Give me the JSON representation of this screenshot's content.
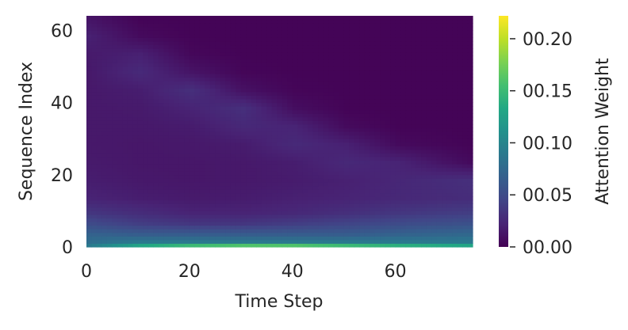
{
  "chart_data": {
    "type": "heatmap",
    "title": "",
    "xlabel": "Time Step",
    "ylabel": "Sequence Index",
    "xlim": [
      0,
      75
    ],
    "ylim": [
      0,
      64
    ],
    "xticks": [
      0,
      20,
      40,
      60
    ],
    "yticks": [
      0,
      20,
      40,
      60
    ],
    "colormap": "viridis",
    "grid": false,
    "colorbar": {
      "label": "Attention Weight",
      "range": [
        0,
        0.222
      ],
      "ticks": [
        0,
        0.05,
        0.1,
        0.15,
        0.2
      ],
      "tick_labels": [
        "00.00",
        "00.05",
        "00.10",
        "00.15",
        "00.20"
      ]
    },
    "grid_time_steps": [
      0,
      10,
      20,
      30,
      40,
      50,
      60,
      74
    ],
    "grid_sequence_index": [
      0,
      1,
      3,
      6,
      9,
      13,
      18,
      23,
      28,
      33,
      38,
      43,
      48,
      53,
      58,
      63
    ],
    "values": [
      [
        0.09,
        0.13,
        0.15,
        0.16,
        0.16,
        0.15,
        0.14,
        0.13
      ],
      [
        0.08,
        0.09,
        0.09,
        0.09,
        0.09,
        0.09,
        0.09,
        0.09
      ],
      [
        0.07,
        0.065,
        0.065,
        0.065,
        0.065,
        0.065,
        0.07,
        0.075
      ],
      [
        0.05,
        0.04,
        0.035,
        0.035,
        0.04,
        0.045,
        0.05,
        0.055
      ],
      [
        0.035,
        0.028,
        0.022,
        0.022,
        0.025,
        0.03,
        0.035,
        0.04
      ],
      [
        0.022,
        0.018,
        0.016,
        0.017,
        0.02,
        0.022,
        0.025,
        0.028
      ],
      [
        0.018,
        0.015,
        0.014,
        0.015,
        0.017,
        0.02,
        0.024,
        0.03
      ],
      [
        0.016,
        0.014,
        0.014,
        0.015,
        0.018,
        0.025,
        0.022,
        0.006
      ],
      [
        0.015,
        0.014,
        0.015,
        0.017,
        0.026,
        0.02,
        0.006,
        0.002
      ],
      [
        0.015,
        0.015,
        0.017,
        0.025,
        0.022,
        0.006,
        0.002,
        0.002
      ],
      [
        0.015,
        0.016,
        0.022,
        0.03,
        0.008,
        0.002,
        0.002,
        0.002
      ],
      [
        0.015,
        0.018,
        0.03,
        0.01,
        0.003,
        0.002,
        0.002,
        0.002
      ],
      [
        0.015,
        0.026,
        0.012,
        0.003,
        0.002,
        0.002,
        0.002,
        0.002
      ],
      [
        0.016,
        0.02,
        0.004,
        0.002,
        0.002,
        0.002,
        0.002,
        0.002
      ],
      [
        0.02,
        0.006,
        0.002,
        0.002,
        0.002,
        0.002,
        0.002,
        0.002
      ],
      [
        0.012,
        0.002,
        0.002,
        0.002,
        0.002,
        0.002,
        0.002,
        0.002
      ]
    ]
  }
}
